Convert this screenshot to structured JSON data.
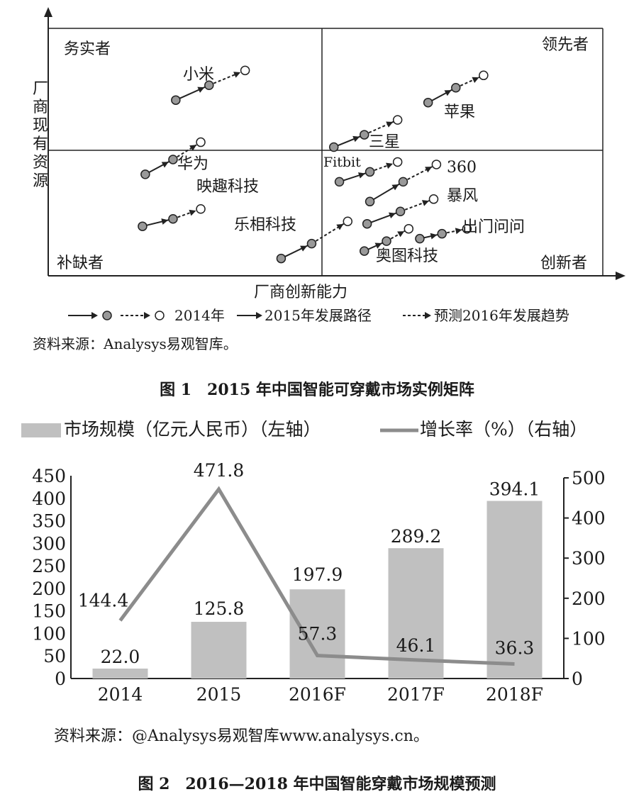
{
  "chart_data": [
    {
      "type": "scatter",
      "title": "图 1　2015 年中国智能可穿戴市场实例矩阵",
      "xlabel": "厂商创新能力",
      "ylabel": "厂商现有资源",
      "quadrants": {
        "top_left": "务实者",
        "top_right": "领先者",
        "bottom_left": "补缺者",
        "bottom_right": "创新者"
      },
      "legend": {
        "year2014": "2014年",
        "path2015": "2015年发展路径",
        "trend2016": "预测2016年发展趋势"
      },
      "companies": [
        {
          "name": "小米",
          "x2014": 0.46,
          "y2014": 0.71,
          "x2015": 0.58,
          "y2015": 0.77,
          "x2016": 0.71,
          "y2016": 0.83
        },
        {
          "name": "苹果",
          "x2014": 1.37,
          "y2014": 0.7,
          "x2015": 1.47,
          "y2015": 0.76,
          "x2016": 1.57,
          "y2016": 0.81
        },
        {
          "name": "三星",
          "x2014": 1.03,
          "y2014": 0.52,
          "x2015": 1.14,
          "y2015": 0.57,
          "x2016": 1.26,
          "y2016": 0.63
        },
        {
          "name": "华为",
          "x2014": 0.35,
          "y2014": 0.41,
          "x2015": 0.45,
          "y2015": 0.47,
          "x2016": 0.55,
          "y2016": 0.54
        },
        {
          "name": "Fitbit",
          "x2014": 1.05,
          "y2014": 0.38,
          "x2015": 1.16,
          "y2015": 0.42,
          "x2016": 1.26,
          "y2016": 0.46
        },
        {
          "name": "360",
          "x2014": 1.16,
          "y2014": 0.3,
          "x2015": 1.28,
          "y2015": 0.38,
          "x2016": 1.4,
          "y2016": 0.45
        },
        {
          "name": "映趣科技",
          "x2014": 0.34,
          "y2014": 0.2,
          "x2015": 0.45,
          "y2015": 0.23,
          "x2016": 0.55,
          "y2016": 0.27
        },
        {
          "name": "暴风",
          "x2014": 1.15,
          "y2014": 0.21,
          "x2015": 1.27,
          "y2015": 0.26,
          "x2016": 1.39,
          "y2016": 0.31
        },
        {
          "name": "乐相科技",
          "x2014": 0.84,
          "y2014": 0.07,
          "x2015": 0.95,
          "y2015": 0.13,
          "x2016": 1.08,
          "y2016": 0.22
        },
        {
          "name": "出门问问",
          "x2014": 1.34,
          "y2014": 0.15,
          "x2015": 1.42,
          "y2015": 0.17,
          "x2016": 1.51,
          "y2016": 0.19
        },
        {
          "name": "奥图科技",
          "x2014": 1.14,
          "y2014": 0.1,
          "x2015": 1.22,
          "y2015": 0.14,
          "x2016": 1.3,
          "y2016": 0.19
        }
      ],
      "source": "资料来源：Analysys易观智库。"
    },
    {
      "type": "bar",
      "title": "图 2　2016—2018 年中国智能穿戴市场规模预测",
      "categories": [
        "2014",
        "2015",
        "2016F",
        "2017F",
        "2018F"
      ],
      "series": [
        {
          "name": "市场规模（亿元人民币）（左轴）",
          "kind": "bar",
          "axis": "left",
          "values": [
            22.0,
            125.8,
            197.9,
            289.2,
            394.1
          ]
        },
        {
          "name": "增长率（%）（右轴）",
          "kind": "line",
          "axis": "right",
          "values": [
            144.4,
            471.8,
            57.3,
            46.1,
            36.3
          ]
        }
      ],
      "left_axis": {
        "ylim": [
          0,
          450
        ],
        "ticks": [
          "0",
          "50",
          "100",
          "150",
          "200",
          "250",
          "300",
          "350",
          "400",
          "450"
        ]
      },
      "right_axis": {
        "ylim": [
          0,
          500
        ],
        "ticks": [
          "0",
          "100",
          "200",
          "300",
          "400",
          "500"
        ]
      },
      "bar_labels": [
        "22.0",
        "125.8",
        "197.9",
        "289.2",
        "394.1"
      ],
      "line_labels": [
        "144.4",
        "471.8",
        "57.3",
        "46.1",
        "36.3"
      ],
      "legend_placement": "top",
      "grid": false,
      "colors": {
        "bar": "#c0c0c0",
        "line": "#8c8c8c"
      },
      "source": "资料来源：@Analysys易观智库www.analysys.cn。"
    }
  ]
}
